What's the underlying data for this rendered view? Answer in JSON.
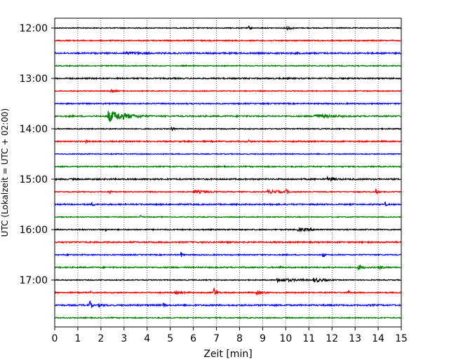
{
  "chart_data": {
    "type": "line",
    "title": "",
    "xlabel": "Zeit  [min]",
    "ylabel": "UTC (Lokalzeit = UTC + 02:00)",
    "xlim": [
      0,
      15
    ],
    "x_ticks": [
      "0",
      "1",
      "2",
      "3",
      "4",
      "5",
      "6",
      "7",
      "8",
      "9",
      "10",
      "11",
      "12",
      "13",
      "14",
      "15"
    ],
    "y_ticks": [
      "12:00",
      "13:00",
      "14:00",
      "15:00",
      "16:00",
      "17:00"
    ],
    "grid": "vertical dotted lines at each minute",
    "trace_interval_min": 15,
    "first_trace": "12:00",
    "trace_count": 24,
    "color_cycle": [
      "#000000",
      "#ff0000",
      "#0000ff",
      "#008000"
    ],
    "events": [
      {
        "trace": 0,
        "t": 8.4,
        "amp": 0.35,
        "dur": 0.12
      },
      {
        "trace": 0,
        "t": 10.05,
        "amp": 0.4,
        "dur": 0.25
      },
      {
        "trace": 2,
        "t": 3.0,
        "amp": 0.25,
        "dur": 1.5
      },
      {
        "trace": 2,
        "t": 10.5,
        "amp": 0.3,
        "dur": 0.1
      },
      {
        "trace": 5,
        "t": 2.4,
        "amp": 0.25,
        "dur": 0.4
      },
      {
        "trace": 7,
        "t": 2.3,
        "amp": 1.0,
        "dur": 0.9
      },
      {
        "trace": 7,
        "t": 11.2,
        "amp": 0.4,
        "dur": 1.2
      },
      {
        "trace": 8,
        "t": 5.05,
        "amp": 0.55,
        "dur": 0.1
      },
      {
        "trace": 9,
        "t": 1.35,
        "amp": 0.35,
        "dur": 0.08
      },
      {
        "trace": 9,
        "t": 8.4,
        "amp": 0.3,
        "dur": 0.08
      },
      {
        "trace": 12,
        "t": 11.8,
        "amp": 0.35,
        "dur": 0.6
      },
      {
        "trace": 13,
        "t": 2.4,
        "amp": 0.45,
        "dur": 0.1
      },
      {
        "trace": 13,
        "t": 6.0,
        "amp": 0.3,
        "dur": 1.0
      },
      {
        "trace": 13,
        "t": 9.2,
        "amp": 0.3,
        "dur": 1.0
      },
      {
        "trace": 13,
        "t": 10.0,
        "amp": 0.75,
        "dur": 0.08
      },
      {
        "trace": 13,
        "t": 13.9,
        "amp": 0.65,
        "dur": 0.1
      },
      {
        "trace": 14,
        "t": 1.6,
        "amp": 0.4,
        "dur": 0.15
      },
      {
        "trace": 14,
        "t": 14.3,
        "amp": 0.45,
        "dur": 0.1
      },
      {
        "trace": 15,
        "t": 3.7,
        "amp": 0.4,
        "dur": 0.08
      },
      {
        "trace": 16,
        "t": 2.2,
        "amp": 0.35,
        "dur": 0.08
      },
      {
        "trace": 16,
        "t": 10.5,
        "amp": 0.3,
        "dur": 1.0
      },
      {
        "trace": 18,
        "t": 0.55,
        "amp": 0.3,
        "dur": 0.08
      },
      {
        "trace": 18,
        "t": 5.45,
        "amp": 0.55,
        "dur": 0.1
      },
      {
        "trace": 18,
        "t": 11.6,
        "amp": 0.45,
        "dur": 0.1
      },
      {
        "trace": 19,
        "t": 9.7,
        "amp": 0.45,
        "dur": 0.1
      },
      {
        "trace": 19,
        "t": 13.1,
        "amp": 0.5,
        "dur": 0.3
      },
      {
        "trace": 19,
        "t": 14.0,
        "amp": 0.35,
        "dur": 0.4
      },
      {
        "trace": 20,
        "t": 9.6,
        "amp": 0.35,
        "dur": 1.2
      },
      {
        "trace": 20,
        "t": 11.2,
        "amp": 0.4,
        "dur": 0.6
      },
      {
        "trace": 21,
        "t": 1.5,
        "amp": 0.3,
        "dur": 0.1
      },
      {
        "trace": 21,
        "t": 5.2,
        "amp": 0.25,
        "dur": 0.8
      },
      {
        "trace": 21,
        "t": 6.85,
        "amp": 1.1,
        "dur": 0.15
      },
      {
        "trace": 21,
        "t": 8.7,
        "amp": 0.3,
        "dur": 0.6
      },
      {
        "trace": 21,
        "t": 12.7,
        "amp": 0.4,
        "dur": 0.08
      },
      {
        "trace": 22,
        "t": 1.5,
        "amp": 0.9,
        "dur": 0.1
      },
      {
        "trace": 22,
        "t": 1.9,
        "amp": 0.3,
        "dur": 0.5
      },
      {
        "trace": 22,
        "t": 4.7,
        "amp": 0.45,
        "dur": 0.15
      }
    ]
  }
}
